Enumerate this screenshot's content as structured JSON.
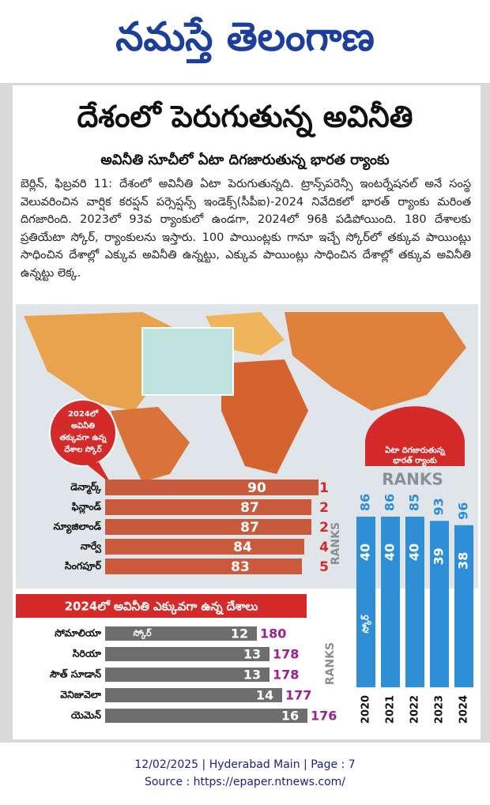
{
  "header": {
    "masthead": "నమస్తే తెలంగాణ"
  },
  "article": {
    "headline": "దేశంలో పెరుగుతున్న అవినీతి",
    "subheadline": "అవినీతి సూచీలో ఏటా దిగజారుతున్న భారత ర్యాంకు",
    "body": "బెర్లిన్, ఫిబ్రవరి 11: దేశంలో అవినీతి ఏటా పెరుగుతున్నది. ట్రాన్స్‌పరెన్సీ ఇంటర్నేషనల్ అనే సంస్థ వెలువరించిన వార్షిక కరప్షన్ పర్సెప్షన్స్ ఇండెక్స్(సీపీఐ)-2024 నివేదికలో భారత్ ర్యాంకు మరింత దిగజారింది. 2023లో 93వ ర్యాంకులో ఉండగా, 2024లో 96కి పడిపోయింది. 180 దేశాలకు ప్రతియేటా స్కోర్, ర్యాంకులను ఇస్తారు. 100 పాయింట్లకు గానూ ఇచ్చే స్కోర్‌లో తక్కువ పాయింట్లు సాధించిన దేశాల్లో ఎక్కువ అవినీతి ఉన్నట్టు, ఎక్కువ పాయింట్లు సాధించిన దేశాల్లో తక్కువ అవినీతి ఉన్నట్టు లెక్క."
  },
  "infographic": {
    "least_corrupt": {
      "callout": [
        "2024లో",
        "అవినీతి",
        "తక్కువగా ఉన్న",
        "దేశాల స్కోర్"
      ],
      "ranks_label": "RANKS",
      "rows": [
        {
          "country": "డెన్మార్క్",
          "score": 90,
          "rank": 1
        },
        {
          "country": "ఫిన్లాండ్",
          "score": 87,
          "rank": 2
        },
        {
          "country": "న్యూజిలాండ్",
          "score": 87,
          "rank": 2
        },
        {
          "country": "నార్వే",
          "score": 84,
          "rank": 4
        },
        {
          "country": "సింగపూర్",
          "score": 83,
          "rank": 5
        }
      ]
    },
    "most_corrupt": {
      "heading": "2024లో అవినీతి ఎక్కువగా ఉన్న దేశాలు",
      "score_label": "స్కోర్",
      "ranks_label": "RANKS",
      "rows": [
        {
          "country": "సోమాలియా",
          "score": 12,
          "rank": 180
        },
        {
          "country": "సిరియా",
          "score": 13,
          "rank": 178
        },
        {
          "country": "సౌత్ సూడాన్",
          "score": 13,
          "rank": 178
        },
        {
          "country": "వెనిజువెలా",
          "score": 14,
          "rank": 177
        },
        {
          "country": "యెమెన్",
          "score": 16,
          "rank": 176
        }
      ]
    },
    "india": {
      "callout": [
        "ఏటా దిగజారుతున్న",
        "భారత్ ర్యాంకు"
      ],
      "ranks_label": "RANKS",
      "score_label": "స్కోర్",
      "years": [
        {
          "year": "2020",
          "rank": 86,
          "score": 40
        },
        {
          "year": "2021",
          "rank": 86,
          "score": 40
        },
        {
          "year": "2022",
          "rank": 85,
          "score": 40
        },
        {
          "year": "2023",
          "rank": 93,
          "score": 39
        },
        {
          "year": "2024",
          "rank": 96,
          "score": 38
        }
      ]
    }
  },
  "footer": {
    "line": "12/02/2025 | Hyderabad Main | Page : 7",
    "source": "Source : https://epaper.ntnews.com/"
  }
}
